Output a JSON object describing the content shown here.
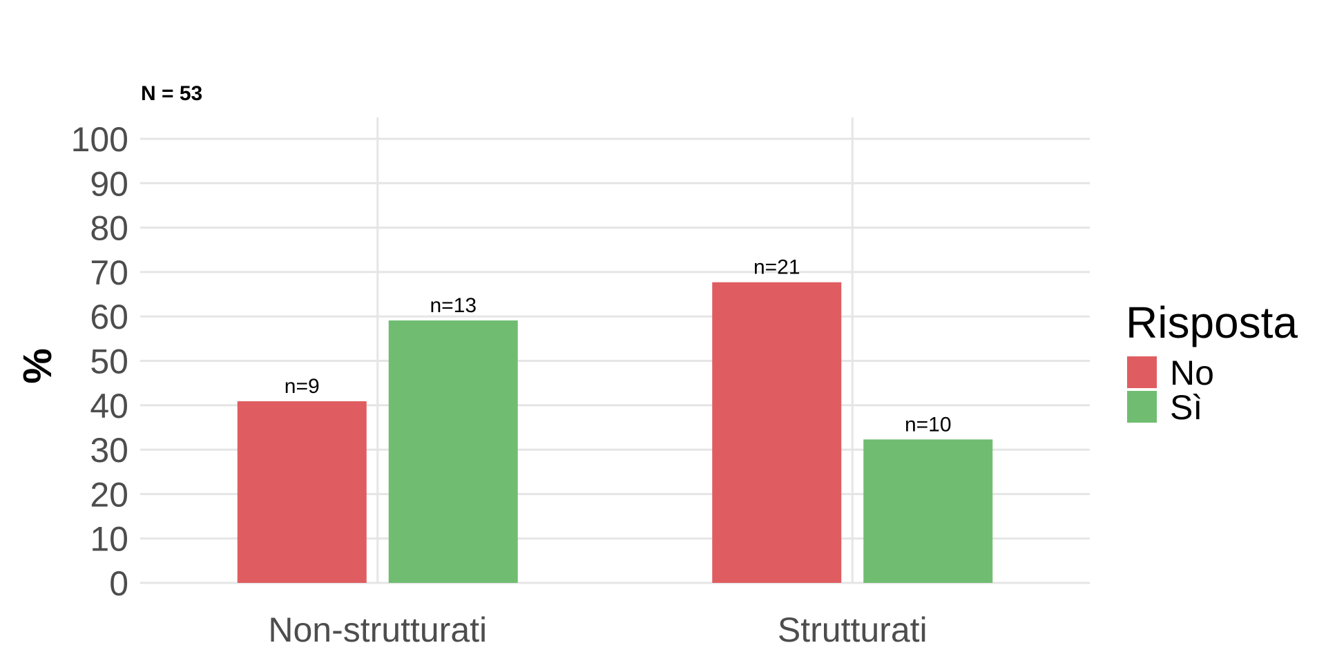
{
  "chart_data": {
    "type": "bar",
    "subtitle": "N = 53",
    "title": "",
    "xlabel": "",
    "ylabel": "%",
    "ylim": [
      0,
      100
    ],
    "yticks": [
      0,
      10,
      20,
      30,
      40,
      50,
      60,
      70,
      80,
      90,
      100
    ],
    "categories": [
      "Non-strutturati",
      "Strutturati"
    ],
    "series": [
      {
        "name": "No",
        "color": "#df5d61",
        "values": [
          40.9,
          67.7
        ],
        "labels": [
          "n=9",
          "n=21"
        ]
      },
      {
        "name": "Sì",
        "color": "#70bd71",
        "values": [
          59.1,
          32.3
        ],
        "labels": [
          "n=13",
          "n=10"
        ]
      }
    ],
    "legend": {
      "title": "Risposta",
      "position": "right"
    },
    "grid": true
  }
}
